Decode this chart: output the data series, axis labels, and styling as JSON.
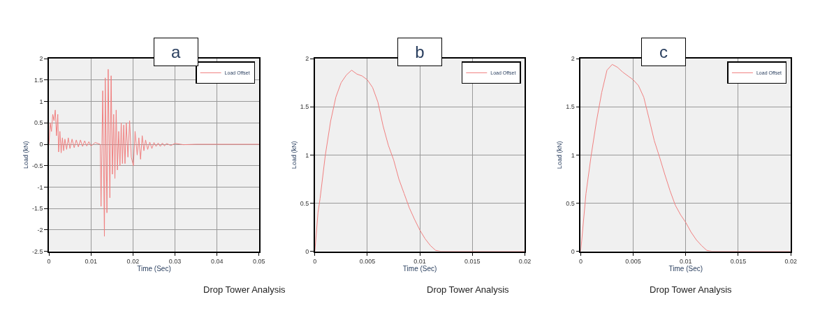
{
  "chart_data": [
    {
      "type": "line",
      "title": "a",
      "xlabel": "Time (Sec)",
      "ylabel": "Load (kN)",
      "annotations": [
        "Drop Tower Analysis"
      ],
      "x": [
        0,
        0.0003,
        0.0006,
        0.0009,
        0.0012,
        0.0015,
        0.0018,
        0.0021,
        0.0023,
        0.0026,
        0.0029,
        0.0032,
        0.0035,
        0.0038,
        0.0042,
        0.0046,
        0.005,
        0.0055,
        0.006,
        0.0065,
        0.007,
        0.0075,
        0.008,
        0.0085,
        0.009,
        0.0095,
        0.01,
        0.011,
        0.0122,
        0.0124,
        0.0128,
        0.0132,
        0.0134,
        0.0138,
        0.0141,
        0.0145,
        0.0148,
        0.0151,
        0.0154,
        0.0157,
        0.016,
        0.0163,
        0.0166,
        0.0169,
        0.0172,
        0.0175,
        0.0178,
        0.0181,
        0.0184,
        0.0188,
        0.0192,
        0.0196,
        0.0201,
        0.0205,
        0.021,
        0.0214,
        0.0218,
        0.0222,
        0.0226,
        0.023,
        0.0235,
        0.024,
        0.0245,
        0.025,
        0.0255,
        0.026,
        0.0265,
        0.027,
        0.0275,
        0.028,
        0.029,
        0.03,
        0.032,
        0.035,
        0.04,
        0.05
      ],
      "series": [
        {
          "name": "Load Offset",
          "color": "#f08080",
          "values": [
            0,
            0.5,
            0.3,
            0.7,
            0.55,
            0.8,
            0.2,
            0.7,
            -0.18,
            0.3,
            -0.2,
            0.15,
            -0.15,
            0.12,
            -0.12,
            0.15,
            -0.1,
            0.12,
            -0.08,
            0.1,
            -0.06,
            0.1,
            -0.05,
            0.08,
            -0.04,
            0.06,
            -0.04,
            0.04,
            0,
            -1.45,
            1.25,
            -2.15,
            1.55,
            -1.6,
            1.75,
            -1.25,
            1.6,
            -0.7,
            0.7,
            -0.8,
            0.8,
            -0.6,
            0.3,
            -0.5,
            0.5,
            -0.45,
            0.45,
            -0.45,
            0.5,
            -0.3,
            0.55,
            -0.3,
            -0.5,
            0.3,
            -0.25,
            0.15,
            -0.35,
            0.2,
            -0.15,
            0.1,
            -0.12,
            0.05,
            -0.1,
            0.04,
            -0.05,
            0.03,
            -0.05,
            0.03,
            -0.04,
            0.02,
            -0.03,
            0.02,
            -0.01,
            0,
            0,
            0
          ]
        }
      ],
      "xlim": [
        0,
        0.05
      ],
      "xticks": [
        0,
        0.01,
        0.02,
        0.03,
        0.04,
        0.05
      ],
      "ylim": [
        -2.5,
        2
      ],
      "yticks": [
        -2.5,
        -2,
        -1.5,
        -1,
        -0.5,
        0,
        0.5,
        1,
        1.5,
        2
      ],
      "grid": true,
      "legend": "top right"
    },
    {
      "type": "line",
      "title": "b",
      "xlabel": "Time (Sec)",
      "ylabel": "Load (kN)",
      "annotations": [
        "Drop Tower Analysis"
      ],
      "x": [
        0,
        0.0003,
        0.0005,
        0.001,
        0.0015,
        0.002,
        0.0025,
        0.003,
        0.0035,
        0.004,
        0.0045,
        0.005,
        0.0055,
        0.006,
        0.0065,
        0.007,
        0.0075,
        0.008,
        0.0085,
        0.009,
        0.0095,
        0.01,
        0.0105,
        0.011,
        0.0115,
        0.012,
        0.02
      ],
      "series": [
        {
          "name": "Load Offset",
          "color": "#f08080",
          "values": [
            0,
            0.4,
            0.55,
            1.0,
            1.35,
            1.6,
            1.75,
            1.83,
            1.88,
            1.84,
            1.82,
            1.78,
            1.7,
            1.55,
            1.3,
            1.1,
            0.95,
            0.75,
            0.6,
            0.45,
            0.33,
            0.22,
            0.13,
            0.06,
            0.01,
            0,
            0
          ]
        }
      ],
      "xlim": [
        0,
        0.02
      ],
      "xticks": [
        0,
        0.005,
        0.01,
        0.015,
        0.02
      ],
      "ylim": [
        0,
        2
      ],
      "yticks": [
        0,
        0.5,
        1,
        1.5,
        2
      ],
      "grid": true,
      "legend": "top right"
    },
    {
      "type": "line",
      "title": "c",
      "xlabel": "Time (Sec)",
      "ylabel": "Load (kN)",
      "annotations": [
        "Drop Tower Analysis"
      ],
      "x": [
        0,
        0.0005,
        0.001,
        0.0015,
        0.002,
        0.0025,
        0.003,
        0.0035,
        0.004,
        0.0045,
        0.005,
        0.0055,
        0.006,
        0.0065,
        0.007,
        0.0075,
        0.008,
        0.0085,
        0.009,
        0.0095,
        0.01,
        0.0105,
        0.011,
        0.0115,
        0.012,
        0.0125,
        0.02
      ],
      "series": [
        {
          "name": "Load Offset",
          "color": "#f08080",
          "values": [
            0,
            0.6,
            1.0,
            1.35,
            1.65,
            1.88,
            1.94,
            1.91,
            1.86,
            1.82,
            1.78,
            1.72,
            1.6,
            1.38,
            1.15,
            0.98,
            0.8,
            0.63,
            0.48,
            0.38,
            0.3,
            0.2,
            0.12,
            0.06,
            0.01,
            0,
            0
          ]
        }
      ],
      "xlim": [
        0,
        0.02
      ],
      "xticks": [
        0,
        0.005,
        0.01,
        0.015,
        0.02
      ],
      "ylim": [
        0,
        2
      ],
      "yticks": [
        0,
        0.5,
        1,
        1.5,
        2
      ],
      "grid": true,
      "legend": "top right"
    }
  ]
}
